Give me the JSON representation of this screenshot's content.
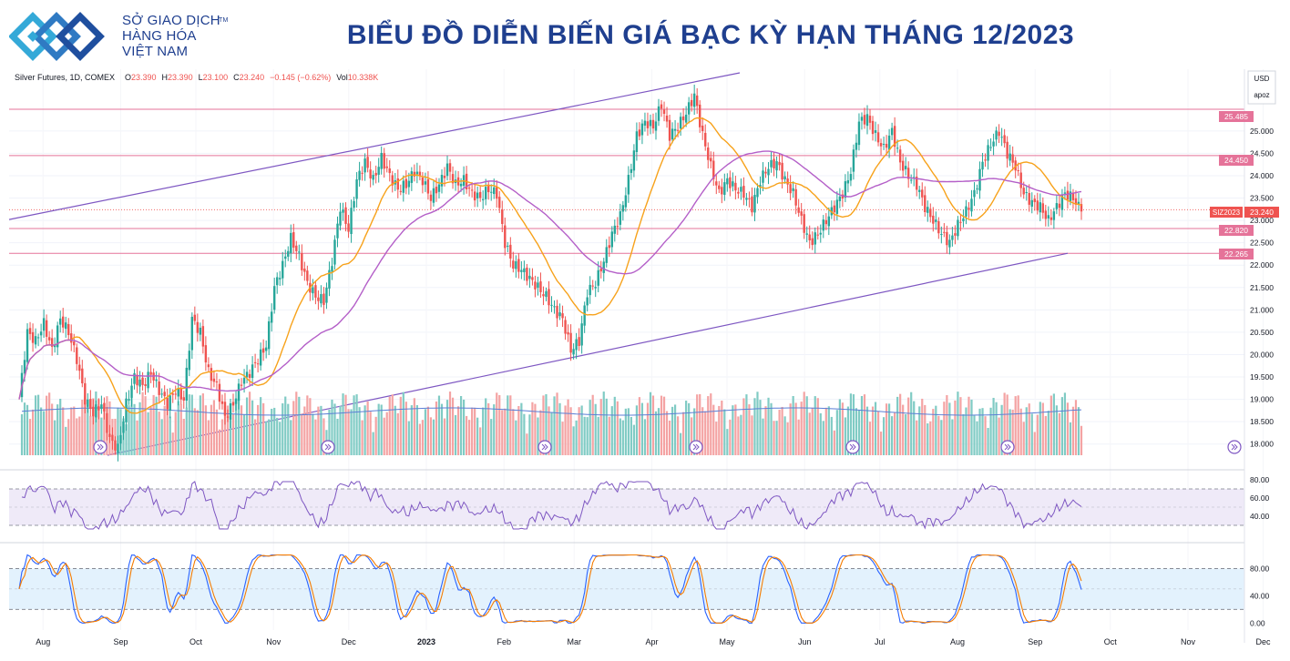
{
  "header": {
    "logo_icon": "sgd-chevron-logo-icon",
    "brand_line1": "SỞ GIAO DỊCH",
    "brand_line2": "HÀNG HÓA",
    "brand_line3": "VIỆT NAM",
    "brand_tm": "TM",
    "title": "BIỂU ĐỒ DIỄN BIẾN GIÁ BẠC KỲ HẠN THÁNG 12/2023",
    "brand_color": "#1f3f8f"
  },
  "legend": {
    "symbol": "Silver Futures, 1D, COMEX",
    "o_label": "O",
    "o_value": "23.390",
    "h_label": "H",
    "h_value": "23.390",
    "l_label": "L",
    "l_value": "23.100",
    "c_label": "C",
    "c_value": "23.240",
    "change": "−0.145 (−0.62%)",
    "vol_label": "Vol",
    "vol_value": "10.338K"
  },
  "scale": {
    "currency": "USD",
    "mode": "apoz"
  },
  "price_tags": {
    "current_symbol": "SIZ2023",
    "current_value": "23.240",
    "levels": [
      "25.485",
      "24.450",
      "22.820",
      "22.265"
    ]
  },
  "colors": {
    "up": "#26a69a",
    "down": "#ef5350",
    "vol_up": "#80cbc4",
    "vol_down": "#f4a3a3",
    "ma_fast": "#f7a21b",
    "ma_slow": "#b45fc8",
    "channel": "#7e57c2",
    "level": "#e57399",
    "vol_ma": "#5b7fd6",
    "rsi": "#7e57c2",
    "stoch_k": "#2962ff",
    "stoch_d": "#f57c00"
  },
  "chart_data": {
    "type": "candlestick",
    "title": "",
    "x_axis_labels": [
      "Aug",
      "Sep",
      "Oct",
      "Nov",
      "Dec",
      "2023",
      "Feb",
      "Mar",
      "Apr",
      "May",
      "Jun",
      "Jul",
      "Aug",
      "Sep",
      "Oct",
      "Nov",
      "Dec"
    ],
    "y_ticks": [
      "25.000",
      "24.500",
      "24.000",
      "23.500",
      "23.000",
      "22.500",
      "22.000",
      "21.500",
      "21.000",
      "20.500",
      "20.000",
      "19.500",
      "19.000",
      "18.500",
      "18.000"
    ],
    "ylim": [
      17.75,
      26.3
    ],
    "horizontal_levels": [
      25.485,
      24.45,
      22.82,
      22.265
    ],
    "current_price": 23.24,
    "close_path": {
      "date_start": "2022-07-29",
      "date_end": "2023-09-26",
      "values": [
        19.0,
        20.5,
        20.3,
        20.7,
        20.1,
        20.8,
        20.5,
        19.9,
        19.0,
        18.7,
        18.9,
        18.1,
        17.9,
        18.9,
        19.5,
        19.3,
        19.6,
        19.2,
        18.9,
        19.2,
        19.0,
        20.8,
        20.5,
        19.6,
        19.3,
        18.6,
        18.9,
        19.4,
        19.6,
        19.9,
        20.2,
        21.5,
        22.0,
        22.6,
        22.2,
        21.6,
        21.3,
        21.2,
        22.1,
        23.3,
        22.8,
        23.9,
        24.3,
        23.9,
        24.4,
        24.0,
        23.7,
        23.8,
        24.1,
        23.9,
        23.5,
        23.8,
        24.2,
        23.8,
        23.9,
        23.6,
        23.5,
        23.7,
        23.6,
        22.5,
        22.0,
        21.9,
        21.7,
        21.5,
        21.3,
        21.0,
        20.8,
        20.1,
        20.3,
        21.4,
        21.6,
        22.1,
        22.7,
        23.1,
        23.9,
        24.9,
        25.2,
        25.1,
        25.6,
        24.9,
        25.1,
        25.4,
        25.8,
        24.9,
        24.2,
        23.6,
        23.9,
        23.7,
        23.6,
        23.3,
        23.9,
        24.2,
        24.3,
        23.9,
        23.6,
        23.0,
        22.5,
        22.7,
        23.0,
        23.3,
        23.6,
        24.1,
        25.2,
        25.3,
        24.9,
        24.6,
        25.0,
        24.3,
        24.0,
        23.8,
        23.3,
        23.0,
        22.7,
        22.5,
        22.9,
        23.2,
        23.6,
        24.3,
        24.7,
        25.0,
        24.5,
        24.2,
        23.6,
        23.4,
        23.3,
        23.0,
        23.3,
        23.6,
        23.5,
        23.2
      ]
    },
    "ma_fast_label": "",
    "ma_slow_label": "",
    "panels": [
      {
        "name": "",
        "type": "volume"
      },
      {
        "name": "",
        "type": "line",
        "ticks": [
          "80.00",
          "60.00",
          "40.00"
        ],
        "ylim": [
          25,
          85
        ],
        "bands": [
          30,
          70
        ]
      },
      {
        "name": "",
        "type": "line",
        "ticks": [
          "80.00",
          "40.00",
          "0.00"
        ],
        "ylim": [
          -5,
          110
        ],
        "bands": [
          20,
          80
        ]
      }
    ]
  }
}
